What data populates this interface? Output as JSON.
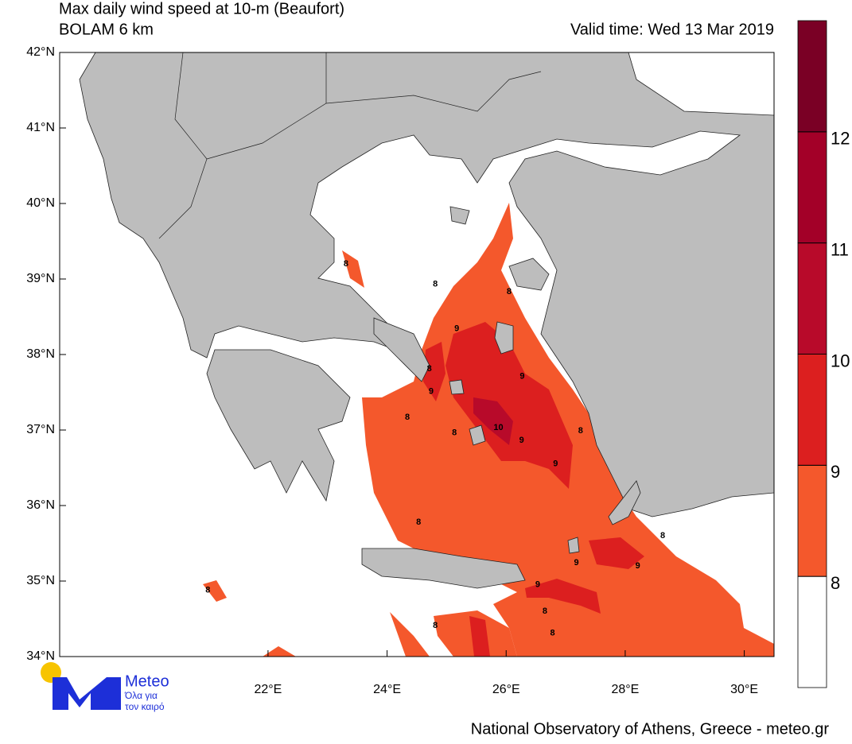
{
  "map": {
    "title": "Max daily wind speed at 10-m (Beaufort)",
    "subtitle": "BOLAM 6 km",
    "valid_time": "Valid time: Wed 13 Mar 2019",
    "xlim": [
      18.5,
      30.5
    ],
    "ylim": [
      34,
      42
    ],
    "lat_ticks": [
      {
        "value": 42,
        "label": "42°N"
      },
      {
        "value": 41,
        "label": "41°N"
      },
      {
        "value": 40,
        "label": "40°N"
      },
      {
        "value": 39,
        "label": "39°N"
      },
      {
        "value": 38,
        "label": "38°N"
      },
      {
        "value": 37,
        "label": "37°N"
      },
      {
        "value": 36,
        "label": "36°N"
      },
      {
        "value": 35,
        "label": "35°N"
      },
      {
        "value": 34,
        "label": "34°N"
      }
    ],
    "lon_ticks": [
      {
        "value": 22,
        "label": "22°E"
      },
      {
        "value": 24,
        "label": "24°E"
      },
      {
        "value": 26,
        "label": "26°E"
      },
      {
        "value": 28,
        "label": "28°E"
      },
      {
        "value": 30,
        "label": "30°E"
      }
    ],
    "colorbar": {
      "levels": [
        8,
        9,
        10,
        11,
        12
      ],
      "colors": [
        "#ffffff",
        "#f4582c",
        "#dc1f1f",
        "#b80a2a",
        "#a30028",
        "#7a0025"
      ]
    },
    "contour_labels": [
      {
        "value": 8,
        "lon": 23.31,
        "lat": 39.2
      },
      {
        "value": 8,
        "lon": 24.81,
        "lat": 38.93
      },
      {
        "value": 8,
        "lon": 26.05,
        "lat": 38.83
      },
      {
        "value": 9,
        "lon": 25.17,
        "lat": 38.34
      },
      {
        "value": 8,
        "lon": 24.71,
        "lat": 37.81
      },
      {
        "value": 9,
        "lon": 24.74,
        "lat": 37.51
      },
      {
        "value": 9,
        "lon": 26.27,
        "lat": 37.71
      },
      {
        "value": 8,
        "lon": 24.34,
        "lat": 37.17
      },
      {
        "value": 8,
        "lon": 25.13,
        "lat": 36.96
      },
      {
        "value": 10,
        "lon": 25.87,
        "lat": 37.03
      },
      {
        "value": 9,
        "lon": 26.26,
        "lat": 36.86
      },
      {
        "value": 8,
        "lon": 27.25,
        "lat": 36.99
      },
      {
        "value": 9,
        "lon": 26.83,
        "lat": 36.55
      },
      {
        "value": 8,
        "lon": 24.53,
        "lat": 35.78
      },
      {
        "value": 8,
        "lon": 28.63,
        "lat": 35.6
      },
      {
        "value": 9,
        "lon": 27.18,
        "lat": 35.24
      },
      {
        "value": 9,
        "lon": 28.21,
        "lat": 35.2
      },
      {
        "value": 9,
        "lon": 26.53,
        "lat": 34.95
      },
      {
        "value": 8,
        "lon": 20.99,
        "lat": 34.88
      },
      {
        "value": 8,
        "lon": 26.65,
        "lat": 34.6
      },
      {
        "value": 8,
        "lon": 24.81,
        "lat": 34.41
      },
      {
        "value": 8,
        "lon": 26.78,
        "lat": 34.31
      }
    ],
    "logo": {
      "name": "Meteo",
      "tagline_1": "Όλα για",
      "tagline_2": "τον καιρό"
    },
    "footer": "National Observatory of Athens, Greece - meteo.gr"
  }
}
